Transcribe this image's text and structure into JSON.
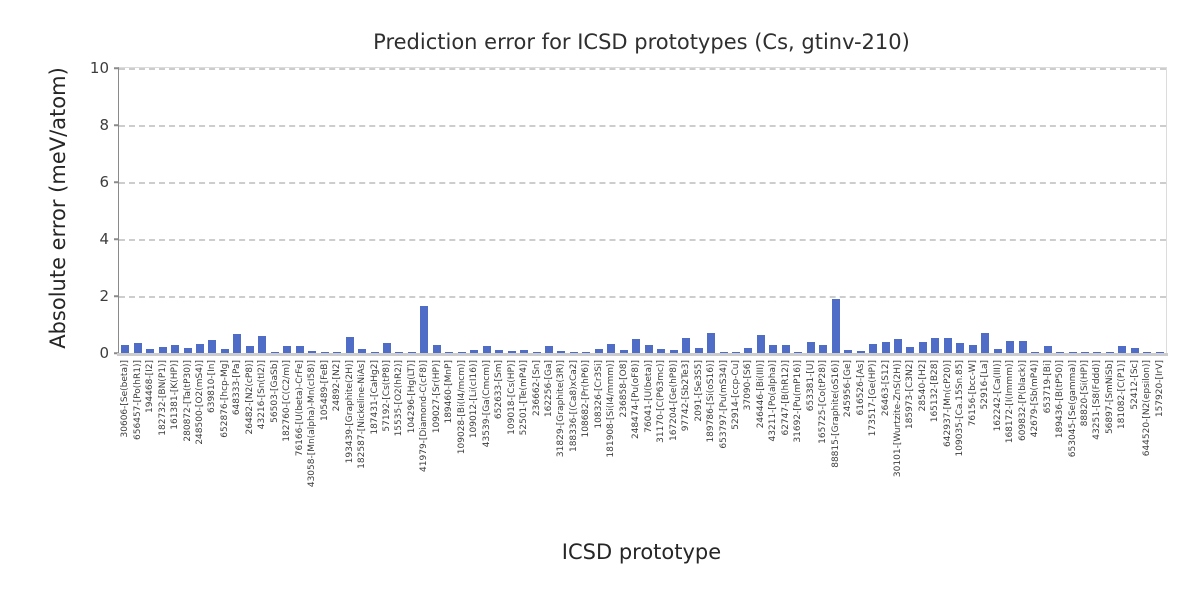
{
  "figure": {
    "title": "Prediction error for ICSD prototypes (Cs, gtinv-210)",
    "ylabel": "Absolute error (meV/atom)",
    "xlabel": "ICSD prototype"
  },
  "chart_data": {
    "type": "bar",
    "title": "Prediction error for ICSD prototypes (Cs, gtinv-210)",
    "xlabel": "ICSD prototype",
    "ylabel": "Absolute error (meV/atom)",
    "ylim": [
      0,
      10
    ],
    "yticks": [
      0,
      2,
      4,
      6,
      8,
      10
    ],
    "grid": "horizontal dashed at yticks",
    "legend": "none",
    "bar_color": "#4f6dc6",
    "categories": [
      "30606-[Se(beta)]",
      "656457-[Po(hR1)]",
      "194468-[I2]",
      "182732-[BN(P1)]",
      "161381-[K(HP)]",
      "280872-[Ta(tP30)]",
      "248500-[O2(mS4)]",
      "639810-[In]",
      "652876-[hcp-Mg]",
      "648333-[Pa]",
      "26482-[N2(cP8)]",
      "43216-[Sn(tI2)]",
      "56503-[GaSb]",
      "182760-[C(C2/m)]",
      "76166-[U(beta)-CrFe]",
      "43058-[Mn(alpha)-Mn(cI58)]",
      "105489-[FeB]",
      "24892-[N2]",
      "193439-[Graphite(2H)]",
      "182587-[Nickeline-NiAs]",
      "187431-[CaHg2]",
      "57192-[Cs(tP8)]",
      "15535-[O2(hR2)]",
      "104296-[Hg(LT)]",
      "41979-[Diamond-C(cF8)]",
      "109027-[Sr(HP)]",
      "189460-[MnP]",
      "109028-[Bi(I4/mcm)]",
      "109012-[Li(cI16)]",
      "43539-[Ga(Cmcm)]",
      "652633-[Sm]",
      "109018-[Cs(HP)]",
      "52501-[Te(mP4)]",
      "236662-[Sn]",
      "162256-[Ga]",
      "31829-[Graphite(3R)]",
      "188336-[(Ca8)xCa2]",
      "108682-[Pr(hP6)]",
      "108326-[Cr3Si]",
      "181908-[Si(I4/mmm)]",
      "236858-[O8]",
      "248474-[Pu(oF8)]",
      "76041-[U(beta)]",
      "31170-[C(P63mc)]",
      "167204-[Ge(hP8)]",
      "97742-[Sb2Te3]",
      "2091-[Se3S5]",
      "189786-[Si(oS16)]",
      "653797-[Pu(mS34)]",
      "52914-[ccp-Cu]",
      "37090-[S6]",
      "246446-[Bi(III)]",
      "43211-[Po(alpha)]",
      "62747-[B(hR12)]",
      "31692-[Pu(mP16)]",
      "653381-[U]",
      "165725-[Co(tP28)]",
      "88815-[Graphite(oS16)]",
      "245956-[Ge]",
      "616526-[As]",
      "173517-[Ge(HP)]",
      "26463-[S12]",
      "30101-[Wurtzite-ZnS(2H)]",
      "185973-[C3N2]",
      "28540-[H2]",
      "165132-[B28]",
      "642937-[Mn(cP20)]",
      "109035-[Ca.15Sn.85]",
      "76156-[bcc-W]",
      "52916-[La]",
      "162242-[Ca(III)]",
      "168172-[I(Immm)]",
      "609832-[P(black)]",
      "42679-[Sb(mP4)]",
      "653719-[Bi]",
      "189436-[B(tP50)]",
      "653045-[Se(gamma)]",
      "88820-[Si(HP)]",
      "43251-[S8(Fddd)]",
      "56897-[SmNiSb]",
      "181082-[C(P1)]",
      "52412-[Sc]",
      "644520-[N2(epsilon)]",
      "157920-[IrV]"
    ],
    "values": [
      0.27,
      0.34,
      0.15,
      0.2,
      0.28,
      0.17,
      0.33,
      0.46,
      0.13,
      0.66,
      0.25,
      0.6,
      0.02,
      0.23,
      0.23,
      0.08,
      0.02,
      0.02,
      0.57,
      0.14,
      0.02,
      0.34,
      0.02,
      0.02,
      1.65,
      0.27,
      0.02,
      0.03,
      0.12,
      0.26,
      0.09,
      0.06,
      0.11,
      0.02,
      0.25,
      0.06,
      0.02,
      0.02,
      0.13,
      0.31,
      0.11,
      0.48,
      0.27,
      0.14,
      0.11,
      0.53,
      0.19,
      0.69,
      0.05,
      0.02,
      0.17,
      0.63,
      0.29,
      0.27,
      0.02,
      0.4,
      0.27,
      1.88,
      0.12,
      0.07,
      0.3,
      0.4,
      0.48,
      0.21,
      0.4,
      0.53,
      0.53,
      0.34,
      0.29,
      0.69,
      0.15,
      0.41,
      0.43,
      0.02,
      0.24,
      0.03,
      0.05,
      0.05,
      0.04,
      0.02,
      0.24,
      0.16,
      0.02,
      0.02
    ]
  }
}
